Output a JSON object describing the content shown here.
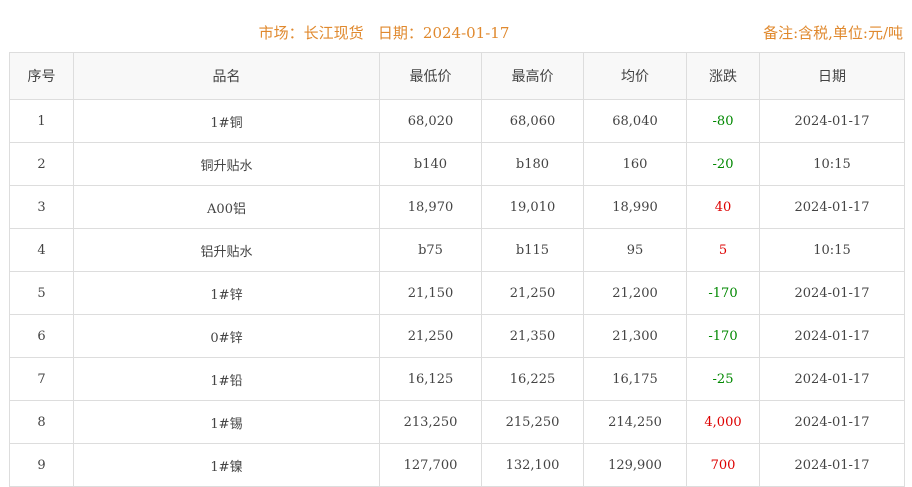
{
  "header": {
    "title": "市场：长江现货   日期：2024-01-17",
    "note": "备注:含税,单位:元/吨"
  },
  "colors": {
    "accent": "#e0892e",
    "up": "#dd0000",
    "down": "#008800"
  },
  "columns": [
    "序号",
    "品名",
    "最低价",
    "最高价",
    "均价",
    "涨跌",
    "日期"
  ],
  "rows": [
    [
      "1",
      "1#铜",
      "68,020",
      "68,060",
      "68,040",
      "-80",
      "2024-01-17"
    ],
    [
      "2",
      "铜升贴水",
      "b140",
      "b180",
      "160",
      "-20",
      "10:15"
    ],
    [
      "3",
      "A00铝",
      "18,970",
      "19,010",
      "18,990",
      "40",
      "2024-01-17"
    ],
    [
      "4",
      "铝升贴水",
      "b75",
      "b115",
      "95",
      "5",
      "10:15"
    ],
    [
      "5",
      "1#锌",
      "21,150",
      "21,250",
      "21,200",
      "-170",
      "2024-01-17"
    ],
    [
      "6",
      "0#锌",
      "21,250",
      "21,350",
      "21,300",
      "-170",
      "2024-01-17"
    ],
    [
      "7",
      "1#铅",
      "16,125",
      "16,225",
      "16,175",
      "-25",
      "2024-01-17"
    ],
    [
      "8",
      "1#锡",
      "213,250",
      "215,250",
      "214,250",
      "4,000",
      "2024-01-17"
    ],
    [
      "9",
      "1#镍",
      "127,700",
      "132,100",
      "129,900",
      "700",
      "2024-01-17"
    ]
  ]
}
